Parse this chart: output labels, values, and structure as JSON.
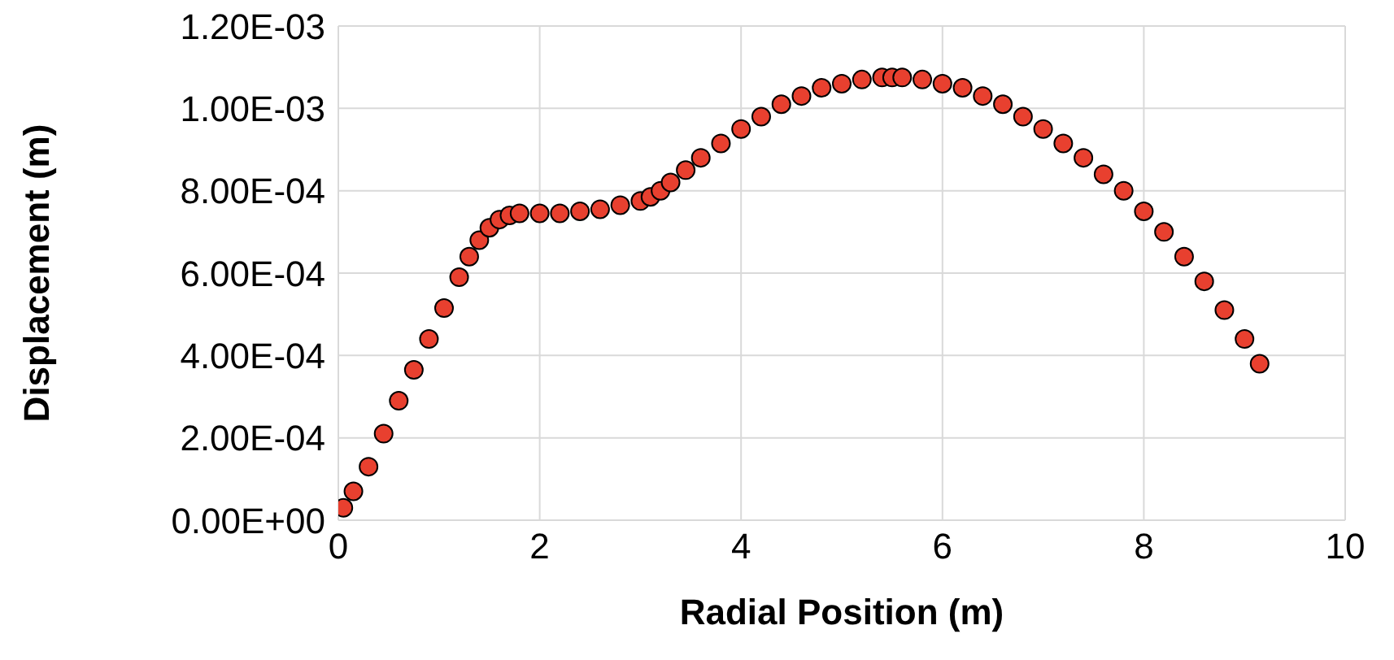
{
  "chart_data": {
    "type": "scatter",
    "xlabel": "Radial Position (m)",
    "ylabel": "Displacement (m)",
    "x": [
      0.05,
      0.15,
      0.3,
      0.45,
      0.6,
      0.75,
      0.9,
      1.05,
      1.2,
      1.3,
      1.4,
      1.5,
      1.6,
      1.7,
      1.8,
      2.0,
      2.2,
      2.4,
      2.6,
      2.8,
      3.0,
      3.1,
      3.2,
      3.3,
      3.45,
      3.6,
      3.8,
      4.0,
      4.2,
      4.4,
      4.6,
      4.8,
      5.0,
      5.2,
      5.4,
      5.5,
      5.6,
      5.8,
      6.0,
      6.2,
      6.4,
      6.6,
      6.8,
      7.0,
      7.2,
      7.4,
      7.6,
      7.8,
      8.0,
      8.2,
      8.4,
      8.6,
      8.8,
      9.0,
      9.15
    ],
    "series": [
      {
        "color": "#e8402f",
        "values": [
          3e-05,
          7e-05,
          0.00013,
          0.00021,
          0.00029,
          0.000365,
          0.00044,
          0.000515,
          0.00059,
          0.00064,
          0.00068,
          0.00071,
          0.00073,
          0.00074,
          0.000745,
          0.000745,
          0.000745,
          0.00075,
          0.000755,
          0.000765,
          0.000775,
          0.000785,
          0.0008,
          0.00082,
          0.00085,
          0.00088,
          0.000915,
          0.00095,
          0.00098,
          0.00101,
          0.00103,
          0.00105,
          0.00106,
          0.00107,
          0.001075,
          0.001075,
          0.001075,
          0.00107,
          0.00106,
          0.00105,
          0.00103,
          0.00101,
          0.00098,
          0.00095,
          0.000915,
          0.00088,
          0.00084,
          0.0008,
          0.00075,
          0.0007,
          0.00064,
          0.00058,
          0.00051,
          0.00044,
          0.00038
        ]
      }
    ],
    "xlim": [
      0,
      10
    ],
    "xticks": [
      0,
      2,
      4,
      6,
      8,
      10
    ],
    "ylim": [
      0,
      0.0012
    ],
    "yticks": [
      {
        "value": 0,
        "label": "0.00E+00"
      },
      {
        "value": 0.0002,
        "label": "2.00E-04"
      },
      {
        "value": 0.0004,
        "label": "4.00E-04"
      },
      {
        "value": 0.0006,
        "label": "6.00E-04"
      },
      {
        "value": 0.0008,
        "label": "8.00E-04"
      },
      {
        "value": 0.001,
        "label": "1.00E-03"
      },
      {
        "value": 0.0012,
        "label": "1.20E-03"
      }
    ],
    "grid": true,
    "marker": "circle",
    "legend": false
  }
}
